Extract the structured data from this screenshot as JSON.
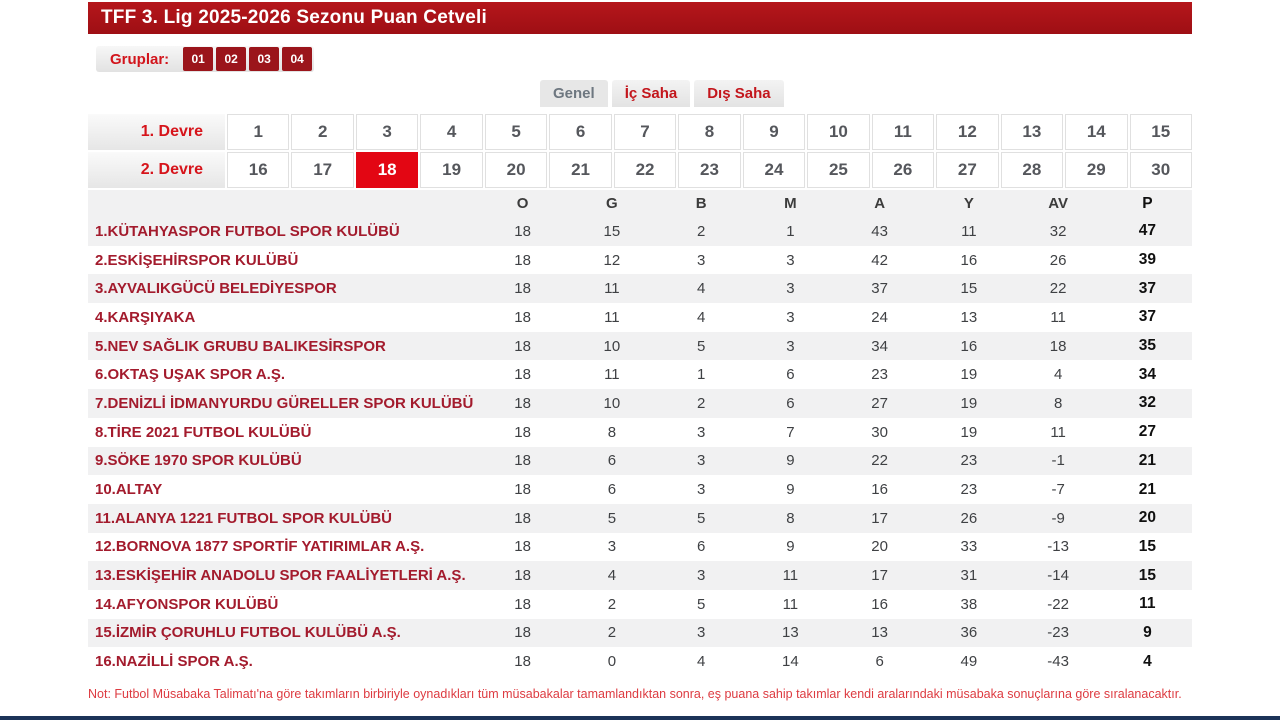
{
  "title": "TFF 3. Lig 2025-2026 Sezonu Puan Cetveli",
  "groups": {
    "label": "Gruplar:",
    "items": [
      "01",
      "02",
      "03",
      "04"
    ]
  },
  "tabs": [
    {
      "key": "genel",
      "label": "Genel",
      "active": true
    },
    {
      "key": "ic-saha",
      "label": "İç Saha",
      "active": false
    },
    {
      "key": "dis-saha",
      "label": "Dış Saha",
      "active": false
    }
  ],
  "rounds": {
    "first_half_label": "1. Devre",
    "second_half_label": "2. Devre",
    "first_half": [
      1,
      2,
      3,
      4,
      5,
      6,
      7,
      8,
      9,
      10,
      11,
      12,
      13,
      14,
      15
    ],
    "second_half": [
      16,
      17,
      18,
      19,
      20,
      21,
      22,
      23,
      24,
      25,
      26,
      27,
      28,
      29,
      30
    ],
    "selected": 18
  },
  "standings": {
    "columns": [
      "O",
      "G",
      "B",
      "M",
      "A",
      "Y",
      "AV",
      "P"
    ],
    "rows": [
      {
        "team": "1.KÜTAHYASPOR FUTBOL SPOR KULÜBÜ",
        "values": [
          18,
          15,
          2,
          1,
          43,
          11,
          32,
          47
        ]
      },
      {
        "team": "2.ESKİŞEHİRSPOR KULÜBÜ",
        "values": [
          18,
          12,
          3,
          3,
          42,
          16,
          26,
          39
        ]
      },
      {
        "team": "3.AYVALIKGÜCÜ BELEDİYESPOR",
        "values": [
          18,
          11,
          4,
          3,
          37,
          15,
          22,
          37
        ]
      },
      {
        "team": "4.KARŞIYAKA",
        "values": [
          18,
          11,
          4,
          3,
          24,
          13,
          11,
          37
        ]
      },
      {
        "team": "5.NEV SAĞLIK GRUBU BALIKESİRSPOR",
        "values": [
          18,
          10,
          5,
          3,
          34,
          16,
          18,
          35
        ]
      },
      {
        "team": "6.OKTAŞ UŞAK SPOR A.Ş.",
        "values": [
          18,
          11,
          1,
          6,
          23,
          19,
          4,
          34
        ]
      },
      {
        "team": "7.DENİZLİ İDMANYURDU GÜRELLER SPOR KULÜBÜ",
        "values": [
          18,
          10,
          2,
          6,
          27,
          19,
          8,
          32
        ]
      },
      {
        "team": "8.TİRE 2021 FUTBOL KULÜBÜ",
        "values": [
          18,
          8,
          3,
          7,
          30,
          19,
          11,
          27
        ]
      },
      {
        "team": "9.SÖKE 1970 SPOR KULÜBÜ",
        "values": [
          18,
          6,
          3,
          9,
          22,
          23,
          -1,
          21
        ]
      },
      {
        "team": "10.ALTAY",
        "values": [
          18,
          6,
          3,
          9,
          16,
          23,
          -7,
          21
        ]
      },
      {
        "team": "11.ALANYA 1221 FUTBOL SPOR KULÜBÜ",
        "values": [
          18,
          5,
          5,
          8,
          17,
          26,
          -9,
          20
        ]
      },
      {
        "team": "12.BORNOVA 1877 SPORTİF YATIRIMLAR A.Ş.",
        "values": [
          18,
          3,
          6,
          9,
          20,
          33,
          -13,
          15
        ]
      },
      {
        "team": "13.ESKİŞEHİR ANADOLU SPOR FAALİYETLERİ A.Ş.",
        "values": [
          18,
          4,
          3,
          11,
          17,
          31,
          -14,
          15
        ]
      },
      {
        "team": "14.AFYONSPOR KULÜBÜ",
        "values": [
          18,
          2,
          5,
          11,
          16,
          38,
          -22,
          11
        ]
      },
      {
        "team": "15.İZMİR ÇORUHLU FUTBOL KULÜBÜ A.Ş.",
        "values": [
          18,
          2,
          3,
          13,
          13,
          36,
          -23,
          9
        ]
      },
      {
        "team": "16.NAZİLLİ SPOR A.Ş.",
        "values": [
          18,
          0,
          4,
          14,
          6,
          49,
          -43,
          4
        ]
      }
    ]
  },
  "note": "Not: Futbol Müsabaka Talimatı'na göre takımların birbiriyle oynadıkları tüm müsabakalar tamamlandıktan sonra, eş puana sahip takımlar kendi aralarındaki müsabaka sonuçlarına göre sıralanacaktır.",
  "colors": {
    "title_bar": "#a91016",
    "accent_red": "#e30613",
    "group_box": "#9b151b",
    "team_text": "#a31b2d",
    "note_text": "#dd3b41",
    "alt_row": "#f1f1f2",
    "bottom_bar": "#1c3358"
  }
}
